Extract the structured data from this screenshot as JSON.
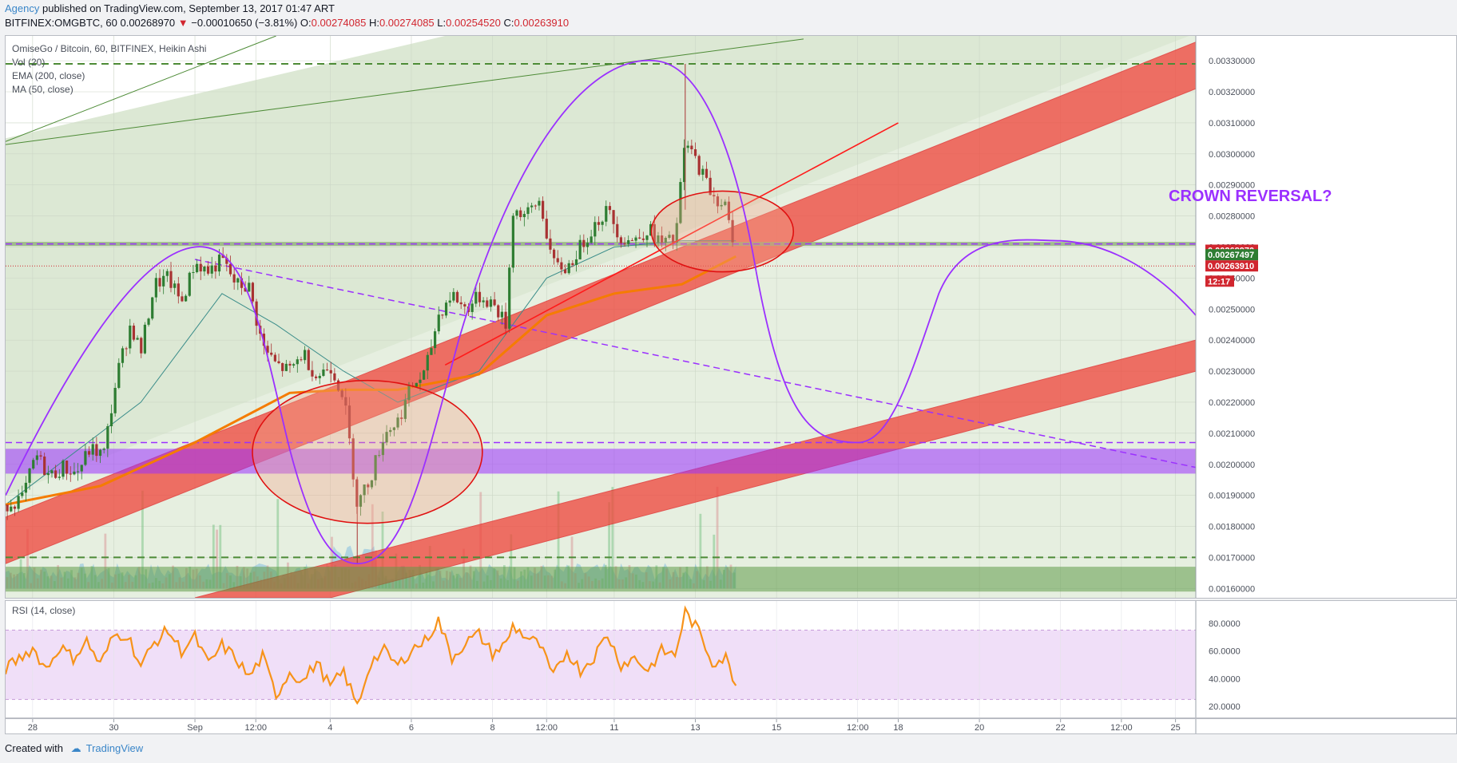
{
  "header": {
    "author": "Agency",
    "published": " published on TradingView.com, September 13, 2017 01:47 ART",
    "symbol": "BITFINEX:OMGBTC, 60",
    "last": "0.00268970",
    "change": "−0.00010650 (−3.81%)",
    "o_label": "O:",
    "o": "0.00274085",
    "h_label": "H:",
    "h": "0.00274085",
    "l_label": "L:",
    "l": "0.00254520",
    "c_label": "C:",
    "c": "0.00263910"
  },
  "legend": {
    "title": "OmiseGo / Bitcoin, 60, BITFINEX, Heikin Ashi",
    "items": [
      "Vol (20)",
      "EMA (200, close)",
      "MA (50, close)"
    ]
  },
  "annotation": "CROWN REVERSAL?",
  "price_tags": [
    {
      "value": "0.00268970",
      "color": "#d1262f"
    },
    {
      "value": "0.00267497",
      "color": "#2e7d32"
    },
    {
      "value": "0.00263910",
      "color": "#d1262f"
    },
    {
      "value": "12:17",
      "color": "#d1262f"
    }
  ],
  "rsi_label": "RSI (14, close)",
  "footer": {
    "created_with": "Created with",
    "brand": "TradingView"
  },
  "colors": {
    "purple": "#9b30ff",
    "band_red": "#f0443a",
    "ema": "#f57c00",
    "green_dash": "#4d8b36",
    "rsi": "#f7931a"
  },
  "chart_data": [
    {
      "type": "candlestick",
      "title": "OmiseGo / Bitcoin, 60, BITFINEX, Heikin Ashi",
      "y_ticks": [
        "0.00330000",
        "0.00320000",
        "0.00310000",
        "0.00300000",
        "0.00290000",
        "0.00280000",
        "0.00270000",
        "0.00260000",
        "0.00250000",
        "0.00240000",
        "0.00230000",
        "0.00220000",
        "0.00210000",
        "0.00200000",
        "0.00190000",
        "0.00180000",
        "0.00170000",
        "0.00160000"
      ],
      "ylim": [
        0.00157,
        0.00338
      ],
      "x_ticks": [
        "28",
        "30",
        "Sep",
        "12:00",
        "4",
        "6",
        "8",
        "12:00",
        "11",
        "13",
        "15",
        "12:00",
        "18",
        "20",
        "22",
        "12:00",
        "25"
      ],
      "close_path": [
        [
          0,
          0.00187
        ],
        [
          5,
          0.00189
        ],
        [
          9,
          0.00203
        ],
        [
          13,
          0.00196
        ],
        [
          17,
          0.00199
        ],
        [
          21,
          0.00197
        ],
        [
          25,
          0.00205
        ],
        [
          29,
          0.00203
        ],
        [
          33,
          0.00229
        ],
        [
          37,
          0.00245
        ],
        [
          40,
          0.00236
        ],
        [
          44,
          0.00258
        ],
        [
          48,
          0.0026
        ],
        [
          52,
          0.00252
        ],
        [
          56,
          0.00265
        ],
        [
          60,
          0.00262
        ],
        [
          64,
          0.00266
        ],
        [
          68,
          0.00258
        ],
        [
          72,
          0.00257
        ],
        [
          76,
          0.00238
        ],
        [
          80,
          0.00232
        ],
        [
          84,
          0.0023
        ],
        [
          88,
          0.00236
        ],
        [
          92,
          0.00228
        ],
        [
          96,
          0.00232
        ],
        [
          100,
          0.00222
        ],
        [
          104,
          0.00187
        ],
        [
          108,
          0.00196
        ],
        [
          112,
          0.0021
        ],
        [
          116,
          0.00214
        ],
        [
          120,
          0.00225
        ],
        [
          124,
          0.00229
        ],
        [
          128,
          0.00248
        ],
        [
          132,
          0.00255
        ],
        [
          136,
          0.0025
        ],
        [
          140,
          0.00254
        ],
        [
          144,
          0.00252
        ],
        [
          148,
          0.00245
        ],
        [
          150,
          0.00282
        ],
        [
          154,
          0.0028
        ],
        [
          158,
          0.00285
        ],
        [
          162,
          0.00264
        ],
        [
          166,
          0.00263
        ],
        [
          170,
          0.0027
        ],
        [
          174,
          0.00277
        ],
        [
          178,
          0.00282
        ],
        [
          182,
          0.00273
        ],
        [
          186,
          0.00272
        ],
        [
          190,
          0.00276
        ],
        [
          194,
          0.00271
        ],
        [
          198,
          0.00272
        ],
        [
          201,
          0.00304
        ],
        [
          205,
          0.00296
        ],
        [
          209,
          0.00287
        ],
        [
          213,
          0.00283
        ],
        [
          216,
          0.00264
        ]
      ],
      "ema_200_path": [
        [
          0,
          0.00187
        ],
        [
          28,
          0.00193
        ],
        [
          56,
          0.00207
        ],
        [
          84,
          0.00223
        ],
        [
          100,
          0.00224
        ],
        [
          116,
          0.00224
        ],
        [
          140,
          0.00229
        ],
        [
          160,
          0.00248
        ],
        [
          180,
          0.00255
        ],
        [
          200,
          0.00258
        ],
        [
          216,
          0.00267
        ]
      ],
      "ma_50_path": [
        [
          0,
          0.00187
        ],
        [
          40,
          0.0022
        ],
        [
          64,
          0.00255
        ],
        [
          80,
          0.00245
        ],
        [
          100,
          0.0023
        ],
        [
          116,
          0.0022
        ],
        [
          140,
          0.0023
        ],
        [
          160,
          0.0026
        ],
        [
          180,
          0.0027
        ],
        [
          200,
          0.00272
        ],
        [
          216,
          0.00272
        ]
      ],
      "horizontal_levels": [
        0.00329,
        0.00271,
        0.00207,
        0.0017
      ],
      "purple_zone": [
        0.00197,
        0.00205
      ],
      "projection_path": [
        [
          216,
          0.0027
        ],
        [
          228,
          0.00245
        ],
        [
          240,
          0.00215
        ],
        [
          252,
          0.00207
        ],
        [
          264,
          0.00218
        ],
        [
          276,
          0.00258
        ],
        [
          300,
          0.0027
        ],
        [
          330,
          0.00265
        ],
        [
          352,
          0.00249
        ]
      ]
    },
    {
      "type": "line",
      "title": "RSI (14, close)",
      "y_ticks": [
        "80.0000",
        "60.0000",
        "40.0000",
        "20.0000"
      ],
      "ylim": [
        12,
        96
      ],
      "bands": [
        25,
        75
      ],
      "series": [
        {
          "name": "RSI (14, close)",
          "x": [
            0,
            8,
            12,
            16,
            20,
            24,
            28,
            32,
            36,
            40,
            44,
            48,
            52,
            56,
            60,
            64,
            68,
            72,
            76,
            80,
            84,
            88,
            92,
            96,
            100,
            104,
            108,
            112,
            116,
            120,
            124,
            128,
            132,
            136,
            140,
            144,
            148,
            150,
            154,
            158,
            162,
            166,
            170,
            174,
            178,
            182,
            186,
            190,
            194,
            198,
            201,
            205,
            209,
            213,
            216
          ],
          "values": [
            47,
            62,
            47,
            63,
            55,
            67,
            50,
            71,
            72,
            49,
            66,
            75,
            60,
            70,
            50,
            64,
            55,
            41,
            56,
            28,
            45,
            38,
            52,
            34,
            45,
            20,
            52,
            60,
            49,
            61,
            67,
            82,
            55,
            66,
            72,
            58,
            65,
            78,
            70,
            64,
            41,
            60,
            46,
            56,
            72,
            50,
            55,
            46,
            60,
            57,
            88,
            74,
            52,
            55,
            35
          ]
        }
      ]
    }
  ]
}
